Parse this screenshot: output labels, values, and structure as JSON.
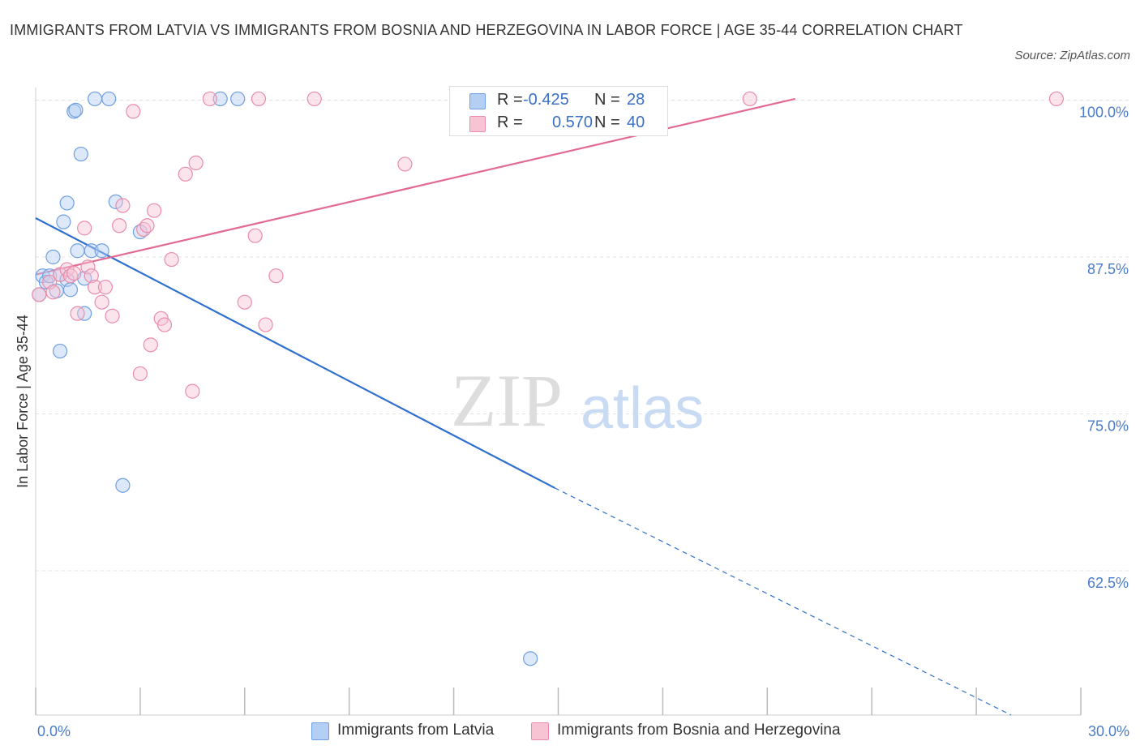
{
  "title": "IMMIGRANTS FROM LATVIA VS IMMIGRANTS FROM BOSNIA AND HERZEGOVINA IN LABOR FORCE | AGE 35-44 CORRELATION CHART",
  "source": "Source: ZipAtlas.com",
  "watermark": {
    "zip": "ZIP",
    "atlas": "atlas"
  },
  "legend": {
    "r_label": "R =",
    "n_label": "N =",
    "rows": [
      {
        "r": "-0.425",
        "n": "28",
        "color": "#a7c4f0"
      },
      {
        "r": "0.570",
        "n": "40",
        "color": "#f4b6c9"
      }
    ]
  },
  "bottom_legend": [
    {
      "label": "Immigrants from Latvia",
      "color": "#a7c4f0"
    },
    {
      "label": "Immigrants from Bosnia and Herzegovina",
      "color": "#f4b6c9"
    }
  ],
  "chart_data": {
    "type": "scatter",
    "title": "IMMIGRANTS FROM LATVIA VS IMMIGRANTS FROM BOSNIA AND HERZEGOVINA IN LABOR FORCE | AGE 35-44 CORRELATION CHART",
    "xlabel": "",
    "ylabel": "In Labor Force | Age 35-44",
    "xlim": [
      0,
      30
    ],
    "ylim": [
      51,
      101
    ],
    "x_tick_labels": [
      {
        "value": 0,
        "label": "0.0%"
      },
      {
        "value": 30,
        "label": "30.0%"
      }
    ],
    "y_ticks": [
      {
        "value": 100,
        "label": "100.0%"
      },
      {
        "value": 87.5,
        "label": "87.5%"
      },
      {
        "value": 75,
        "label": "75.0%"
      },
      {
        "value": 62.5,
        "label": "62.5%"
      }
    ],
    "grid": true,
    "legend_position": "top-center",
    "series": [
      {
        "name": "Immigrants from Latvia",
        "color": "#6f9fe0",
        "fill": "#b4cff3",
        "r": "-0.425",
        "n": "28",
        "points": [
          [
            0.2,
            86.0
          ],
          [
            0.3,
            85.5
          ],
          [
            0.4,
            86.0
          ],
          [
            0.5,
            87.5
          ],
          [
            0.6,
            84.8
          ],
          [
            0.7,
            80.0
          ],
          [
            0.7,
            86.1
          ],
          [
            0.8,
            90.3
          ],
          [
            0.9,
            85.7
          ],
          [
            0.9,
            91.8
          ],
          [
            1.0,
            84.9
          ],
          [
            1.1,
            99.1
          ],
          [
            1.2,
            88.0
          ],
          [
            1.3,
            95.7
          ],
          [
            1.4,
            83.0
          ],
          [
            1.4,
            85.8
          ],
          [
            1.6,
            88.0
          ],
          [
            1.7,
            100.1
          ],
          [
            1.9,
            88.0
          ],
          [
            2.1,
            100.1
          ],
          [
            2.3,
            91.9
          ],
          [
            2.5,
            69.3
          ],
          [
            3.0,
            89.5
          ],
          [
            5.3,
            100.1
          ],
          [
            5.8,
            100.1
          ],
          [
            14.2,
            55.5
          ],
          [
            0.1,
            84.5
          ],
          [
            1.15,
            99.2
          ]
        ],
        "trend": {
          "x0": 0,
          "y0": 90.6,
          "x1": 14.9,
          "y1": 69.1,
          "dash_to_x": 28,
          "dash_to_y": 51
        }
      },
      {
        "name": "Immigrants from Bosnia and Herzegovina",
        "color": "#e98cab",
        "fill": "#f7c4d4",
        "r": "0.570",
        "n": "40",
        "points": [
          [
            0.1,
            84.5
          ],
          [
            0.4,
            85.5
          ],
          [
            0.5,
            84.7
          ],
          [
            0.7,
            86.1
          ],
          [
            0.9,
            86.5
          ],
          [
            1.0,
            86.0
          ],
          [
            1.1,
            86.2
          ],
          [
            1.2,
            83.0
          ],
          [
            1.4,
            89.8
          ],
          [
            1.5,
            86.7
          ],
          [
            1.6,
            86.0
          ],
          [
            1.7,
            85.1
          ],
          [
            1.9,
            83.9
          ],
          [
            2.0,
            85.1
          ],
          [
            2.2,
            82.8
          ],
          [
            2.4,
            90.0
          ],
          [
            2.5,
            91.6
          ],
          [
            2.8,
            99.1
          ],
          [
            3.0,
            78.2
          ],
          [
            3.1,
            89.7
          ],
          [
            3.2,
            90.0
          ],
          [
            3.3,
            80.5
          ],
          [
            3.4,
            91.2
          ],
          [
            3.6,
            82.6
          ],
          [
            3.7,
            82.1
          ],
          [
            3.9,
            87.3
          ],
          [
            4.3,
            94.1
          ],
          [
            4.5,
            76.8
          ],
          [
            4.6,
            95.0
          ],
          [
            5.0,
            100.1
          ],
          [
            6.0,
            83.9
          ],
          [
            6.3,
            89.2
          ],
          [
            6.4,
            100.1
          ],
          [
            6.6,
            82.1
          ],
          [
            6.9,
            86.0
          ],
          [
            8.0,
            100.1
          ],
          [
            10.6,
            94.9
          ],
          [
            15.3,
            100.1
          ],
          [
            20.5,
            100.1
          ],
          [
            29.3,
            100.1
          ]
        ],
        "trend": {
          "x0": 0,
          "y0": 86.1,
          "x1": 21.8,
          "y1": 100.1
        }
      }
    ]
  }
}
